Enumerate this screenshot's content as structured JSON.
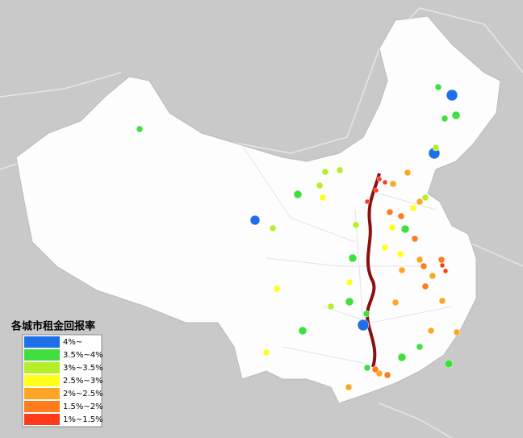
{
  "legend": {
    "title": "各城市租金回报率",
    "items": [
      {
        "label": "4%~",
        "color": "#1f6fe8"
      },
      {
        "label": "3.5%~4%",
        "color": "#3ee03e"
      },
      {
        "label": "3%~3.5%",
        "color": "#b6ef2a"
      },
      {
        "label": "2.5%~3%",
        "color": "#ffff1a"
      },
      {
        "label": "2%~2.5%",
        "color": "#ffa526"
      },
      {
        "label": "1.5%~2%",
        "color": "#ff7b1c"
      },
      {
        "label": "1%~1.5%",
        "color": "#ff3b1a"
      }
    ]
  }
}
